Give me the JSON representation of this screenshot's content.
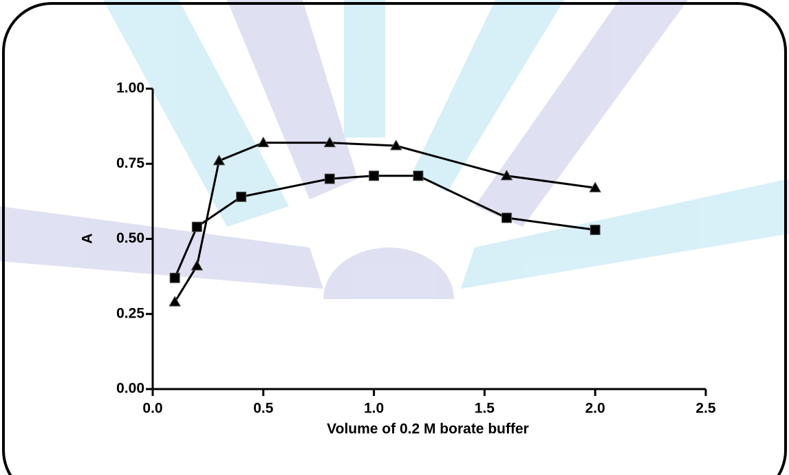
{
  "chart_data": {
    "type": "line",
    "xlabel": "Volume of 0.2 M borate buffer",
    "ylabel": "A",
    "xlim": [
      0,
      2.5
    ],
    "xticks": [
      {
        "value": 0,
        "label": "0.0"
      },
      0.5,
      {
        "value": 1,
        "label": "1.0"
      },
      1.5,
      {
        "value": 2,
        "label": "2.0"
      },
      2.5
    ],
    "ylim": [
      0,
      1
    ],
    "yticks": [
      {
        "value": 0,
        "label": "0.00"
      },
      {
        "value": 0.25,
        "label": "0.25"
      },
      {
        "value": 0.5,
        "label": "0.50"
      },
      {
        "value": 0.75,
        "label": "0.75"
      },
      {
        "value": 1,
        "label": "1.00"
      }
    ],
    "grid": false,
    "series": [
      {
        "color": "#000000",
        "marker": "triangle",
        "x": [
          0.1,
          0.2,
          0.3,
          0.5,
          0.8,
          1.1,
          1.6,
          2.0
        ],
        "values": [
          0.29,
          0.41,
          0.76,
          0.82,
          0.82,
          0.81,
          0.71,
          0.67
        ]
      },
      {
        "color": "#000000",
        "marker": "square",
        "x": [
          0.1,
          0.2,
          0.4,
          0.8,
          1.0,
          1.2,
          1.6,
          2.0
        ],
        "values": [
          0.37,
          0.54,
          0.64,
          0.7,
          0.71,
          0.71,
          0.57,
          0.53
        ]
      }
    ]
  }
}
